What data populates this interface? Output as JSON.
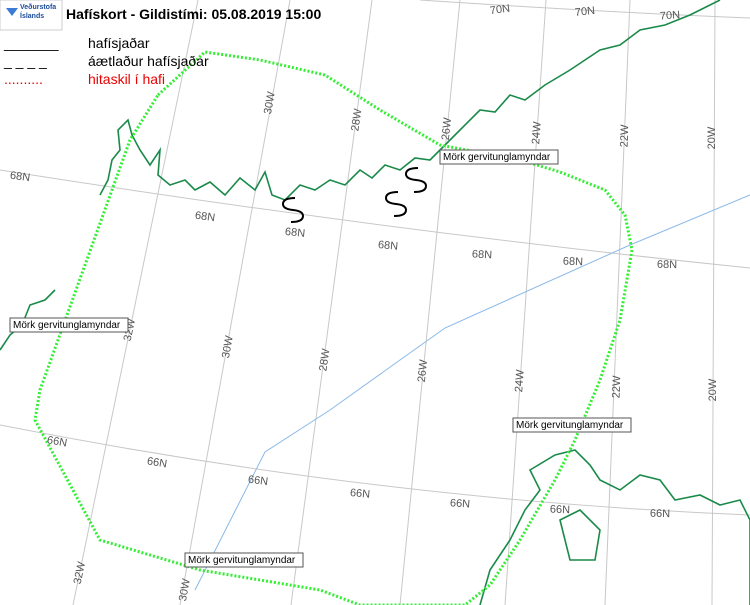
{
  "header": {
    "logo": "Veðurstofa Íslands",
    "title": "Hafískort - Gildistími: 05.08.2019 15:00"
  },
  "legend": [
    {
      "symbol": "_______",
      "label": "hafísjaðar"
    },
    {
      "symbol": "_ _ _ _",
      "label": "áætlaður hafísjaðar"
    },
    {
      "symbol": "..........",
      "label": "hitaskil í hafi"
    }
  ],
  "grid_labels": [
    "70N",
    "70N",
    "70N",
    "68N",
    "68N",
    "68N",
    "68N",
    "68N",
    "68N",
    "68N",
    "66N",
    "66N",
    "66N",
    "66N",
    "66N",
    "66N",
    "66N",
    "30W",
    "28W",
    "26W",
    "24W",
    "22W",
    "20W",
    "32W",
    "30W",
    "28W",
    "26W",
    "24W",
    "22W",
    "20W",
    "32W",
    "30W"
  ],
  "image_bounds_labels": [
    "Mörk gervitunglamyndar",
    "Mörk gervitunglamyndar",
    "Mörk gervitunglamyndar",
    "Mörk gervitunglamyndar"
  ]
}
